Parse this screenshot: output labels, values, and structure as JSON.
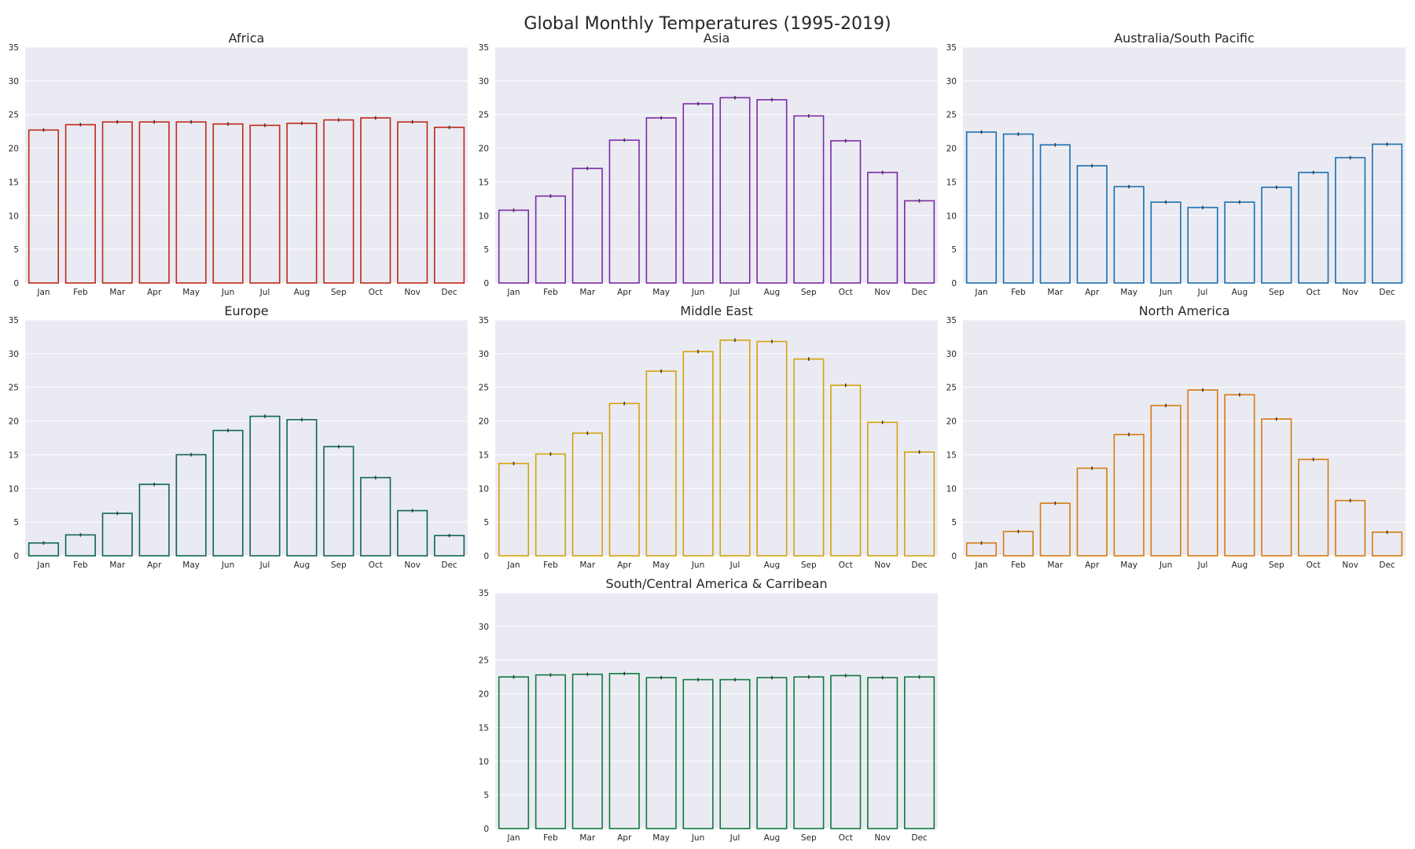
{
  "figure": {
    "title": "Global Monthly Temperatures (1995-2019)"
  },
  "chart_data": [
    {
      "type": "bar",
      "title": "Africa",
      "color": "#c0281b",
      "categories": [
        "Jan",
        "Feb",
        "Mar",
        "Apr",
        "May",
        "Jun",
        "Jul",
        "Aug",
        "Sep",
        "Oct",
        "Nov",
        "Dec"
      ],
      "values": [
        22.7,
        23.5,
        23.9,
        23.9,
        23.9,
        23.6,
        23.4,
        23.7,
        24.2,
        24.5,
        23.9,
        23.1
      ],
      "ylim": [
        0,
        35
      ],
      "yticks": [
        0,
        5,
        10,
        15,
        20,
        25,
        30,
        35
      ],
      "grid": true
    },
    {
      "type": "bar",
      "title": "Asia",
      "color": "#7b2aa6",
      "categories": [
        "Jan",
        "Feb",
        "Mar",
        "Apr",
        "May",
        "Jun",
        "Jul",
        "Aug",
        "Sep",
        "Oct",
        "Nov",
        "Dec"
      ],
      "values": [
        10.8,
        12.9,
        17.0,
        21.2,
        24.5,
        26.6,
        27.5,
        27.2,
        24.8,
        21.1,
        16.4,
        12.2
      ],
      "ylim": [
        0,
        35
      ],
      "yticks": [
        0,
        5,
        10,
        15,
        20,
        25,
        30,
        35
      ],
      "grid": true
    },
    {
      "type": "bar",
      "title": "Australia/South Pacific",
      "color": "#1a6faf",
      "categories": [
        "Jan",
        "Feb",
        "Mar",
        "Apr",
        "May",
        "Jun",
        "Jul",
        "Aug",
        "Sep",
        "Oct",
        "Nov",
        "Dec"
      ],
      "values": [
        22.4,
        22.1,
        20.5,
        17.4,
        14.3,
        12.0,
        11.2,
        12.0,
        14.2,
        16.4,
        18.6,
        20.6
      ],
      "ylim": [
        0,
        35
      ],
      "yticks": [
        0,
        5,
        10,
        15,
        20,
        25,
        30,
        35
      ],
      "grid": true
    },
    {
      "type": "bar",
      "title": "Europe",
      "color": "#0e6655",
      "categories": [
        "Jan",
        "Feb",
        "Mar",
        "Apr",
        "May",
        "Jun",
        "Jul",
        "Aug",
        "Sep",
        "Oct",
        "Nov",
        "Dec"
      ],
      "values": [
        1.9,
        3.1,
        6.3,
        10.6,
        15.0,
        18.6,
        20.7,
        20.2,
        16.2,
        11.6,
        6.7,
        3.0
      ],
      "ylim": [
        0,
        35
      ],
      "yticks": [
        0,
        5,
        10,
        15,
        20,
        25,
        30,
        35
      ],
      "grid": true
    },
    {
      "type": "bar",
      "title": "Middle East",
      "color": "#d4a30c",
      "categories": [
        "Jan",
        "Feb",
        "Mar",
        "Apr",
        "May",
        "Jun",
        "Jul",
        "Aug",
        "Sep",
        "Oct",
        "Nov",
        "Dec"
      ],
      "values": [
        13.7,
        15.1,
        18.2,
        22.6,
        27.4,
        30.3,
        32.0,
        31.8,
        29.2,
        25.3,
        19.8,
        15.4
      ],
      "ylim": [
        0,
        35
      ],
      "yticks": [
        0,
        5,
        10,
        15,
        20,
        25,
        30,
        35
      ],
      "grid": true
    },
    {
      "type": "bar",
      "title": "North America",
      "color": "#d67c0e",
      "categories": [
        "Jan",
        "Feb",
        "Mar",
        "Apr",
        "May",
        "Jun",
        "Jul",
        "Aug",
        "Sep",
        "Oct",
        "Nov",
        "Dec"
      ],
      "values": [
        1.9,
        3.6,
        7.8,
        13.0,
        18.0,
        22.3,
        24.6,
        23.9,
        20.3,
        14.3,
        8.2,
        3.5
      ],
      "ylim": [
        0,
        35
      ],
      "yticks": [
        0,
        5,
        10,
        15,
        20,
        25,
        30,
        35
      ],
      "grid": true
    },
    {
      "type": "bar",
      "title": "South/Central America & Carribean",
      "color": "#0e7a3c",
      "categories": [
        "Jan",
        "Feb",
        "Mar",
        "Apr",
        "May",
        "Jun",
        "Jul",
        "Aug",
        "Sep",
        "Oct",
        "Nov",
        "Dec"
      ],
      "values": [
        22.5,
        22.8,
        22.9,
        23.0,
        22.4,
        22.1,
        22.1,
        22.4,
        22.5,
        22.7,
        22.4,
        22.5
      ],
      "ylim": [
        0,
        35
      ],
      "yticks": [
        0,
        5,
        10,
        15,
        20,
        25,
        30,
        35
      ],
      "grid": true
    }
  ]
}
